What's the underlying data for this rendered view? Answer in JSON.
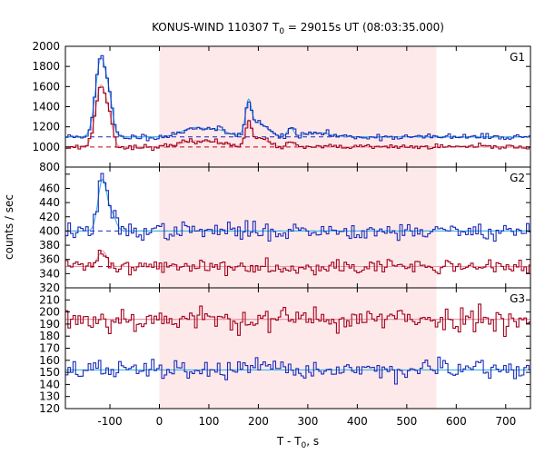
{
  "chart_data": {
    "type": "line",
    "title": {
      "main": "KONUS-WIND 110307 T",
      "sub": "0",
      "rest": " = 29015s UT (08:03:35.000)"
    },
    "xlabel": {
      "main": "T - T",
      "sub": "0",
      "rest": ", s"
    },
    "ylabel": "counts / sec",
    "xlim": [
      -190,
      750
    ],
    "xticks": [
      -100,
      0,
      100,
      200,
      300,
      400,
      500,
      600,
      700
    ],
    "shaded_region": [
      0,
      560
    ],
    "colors": {
      "blue": "#1a2bb8",
      "red": "#a3001c",
      "cyan": "#38b4e8",
      "pink": "#e89aa8",
      "dash_blue": "#1a2bb8",
      "dash_red": "#c0001c",
      "shade": "#fde9ea"
    },
    "panels": [
      {
        "label": "G1",
        "ylim": [
          800,
          2000
        ],
        "yticks": [
          800,
          1000,
          1200,
          1400,
          1600,
          1800,
          2000
        ],
        "background_levels": {
          "blue": 1100,
          "red": 1000
        },
        "series": [
          {
            "color": "blue",
            "base": 1100,
            "noise": 15,
            "peaks": [
              [
                -118,
                780,
                11
              ],
              [
                -100,
                230,
                7
              ],
              [
                70,
                90,
                25
              ],
              [
                120,
                60,
                20
              ],
              [
                180,
                300,
                6
              ],
              [
                200,
                140,
                18
              ],
              [
                265,
                90,
                6
              ],
              [
                320,
                40,
                25
              ]
            ],
            "seed": 11
          },
          {
            "color": "red",
            "base": 1000,
            "noise": 12,
            "peaks": [
              [
                -118,
                610,
                11
              ],
              [
                -100,
                170,
                7
              ],
              [
                70,
                60,
                25
              ],
              [
                120,
                40,
                20
              ],
              [
                180,
                220,
                6
              ],
              [
                200,
                90,
                18
              ],
              [
                265,
                50,
                6
              ]
            ],
            "seed": 23
          }
        ]
      },
      {
        "label": "G2",
        "ylim": [
          320,
          490
        ],
        "yticks": [
          320,
          340,
          360,
          380,
          400,
          420,
          440,
          460,
          480
        ],
        "background_levels": {
          "blue": 400,
          "red": 350
        },
        "series": [
          {
            "color": "blue",
            "base": 400,
            "noise": 6,
            "peaks": [
              [
                -115,
                72,
                9
              ],
              [
                -95,
                20,
                8
              ]
            ],
            "seed": 37
          },
          {
            "color": "red",
            "base": 350,
            "noise": 5,
            "peaks": [
              [
                -115,
                22,
                9
              ]
            ],
            "seed": 41
          }
        ]
      },
      {
        "label": "G3",
        "ylim": [
          120,
          220
        ],
        "yticks": [
          120,
          130,
          140,
          150,
          160,
          170,
          180,
          190,
          200,
          210,
          220
        ],
        "background_levels": {
          "blue": 152,
          "red": 194
        },
        "series": [
          {
            "color": "red",
            "base": 194,
            "noise": 5,
            "peaks": [],
            "seed": 53
          },
          {
            "color": "blue",
            "base": 152,
            "noise": 4,
            "peaks": [],
            "seed": 67
          }
        ]
      }
    ]
  }
}
